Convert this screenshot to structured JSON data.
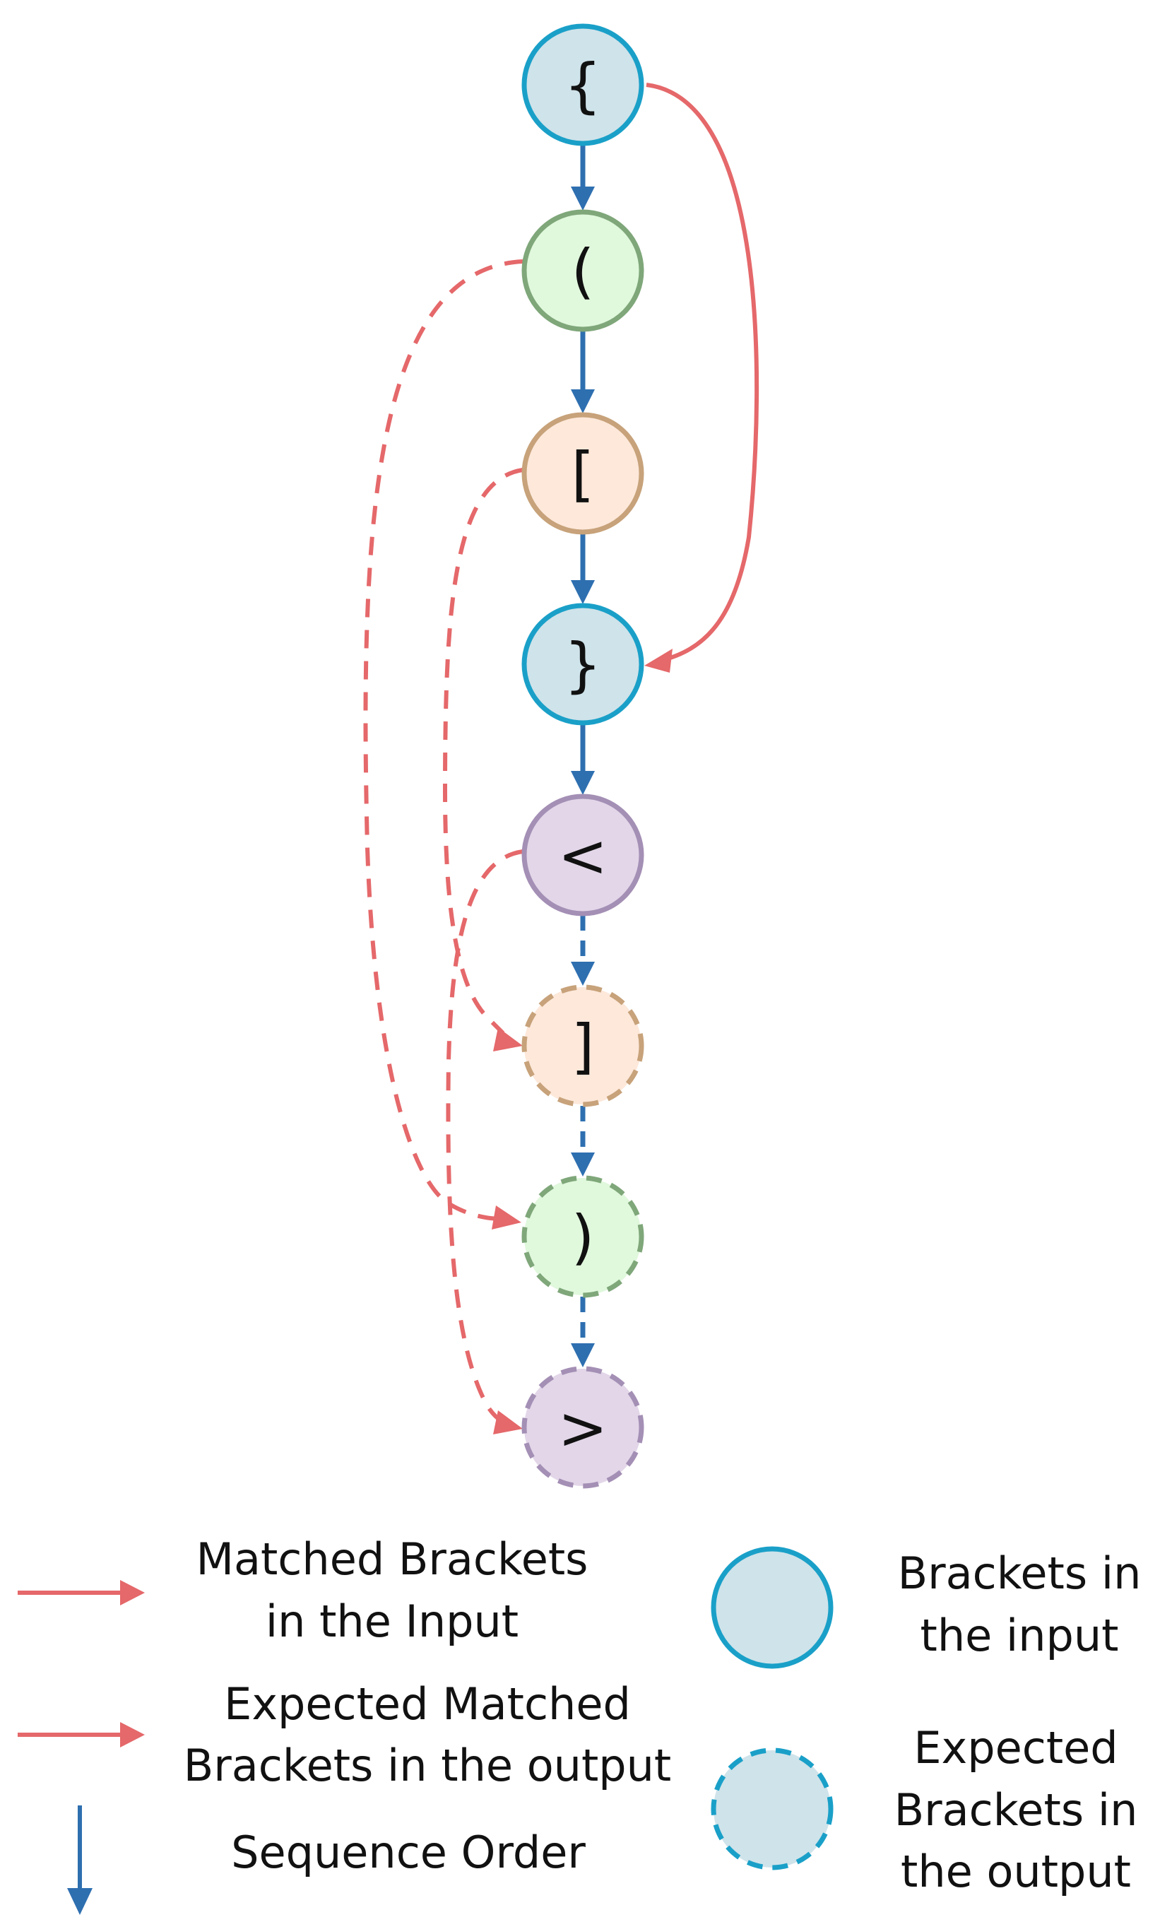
{
  "diagram": {
    "nodes": [
      {
        "id": "n1",
        "label": "{",
        "fill": "#cfe3ea",
        "stroke": "#1aa0c8",
        "dashed": false
      },
      {
        "id": "n2",
        "label": "(",
        "fill": "#e0f8dc",
        "stroke": "#7fa77a",
        "dashed": false
      },
      {
        "id": "n3",
        "label": "[",
        "fill": "#fde8da",
        "stroke": "#c7a27a",
        "dashed": false
      },
      {
        "id": "n4",
        "label": "}",
        "fill": "#cfe3ea",
        "stroke": "#1aa0c8",
        "dashed": false
      },
      {
        "id": "n5",
        "label": "<",
        "fill": "#e2d6e8",
        "stroke": "#a48fb5",
        "dashed": false
      },
      {
        "id": "n6",
        "label": "]",
        "fill": "#fde8da",
        "stroke": "#c7a27a",
        "dashed": true
      },
      {
        "id": "n7",
        "label": ")",
        "fill": "#e0f8dc",
        "stroke": "#7fa77a",
        "dashed": true
      },
      {
        "id": "n8",
        "label": ">",
        "fill": "#e2d6e8",
        "stroke": "#a48fb5",
        "dashed": true
      }
    ],
    "sequence_color": "#2e6fb0",
    "match_color": "#e5686a",
    "matches": [
      {
        "from": "{",
        "to": "}",
        "style": "solid"
      },
      {
        "from": "(",
        "to": ")",
        "style": "dashed"
      },
      {
        "from": "[",
        "to": "]",
        "style": "dashed"
      },
      {
        "from": "<",
        "to": ">",
        "style": "dashed"
      }
    ]
  },
  "legend": {
    "matched_input": {
      "line1": "Matched Brackets",
      "line2": "in the Input"
    },
    "expected_matched": {
      "line1": "Expected Matched",
      "line2": "Brackets in the output"
    },
    "sequence_order": "Sequence Order",
    "brackets_input": {
      "line1": "Brackets in",
      "line2": "the input"
    },
    "expected_brackets": {
      "line1": "Expected",
      "line2": "Brackets in",
      "line3": "the output"
    }
  }
}
